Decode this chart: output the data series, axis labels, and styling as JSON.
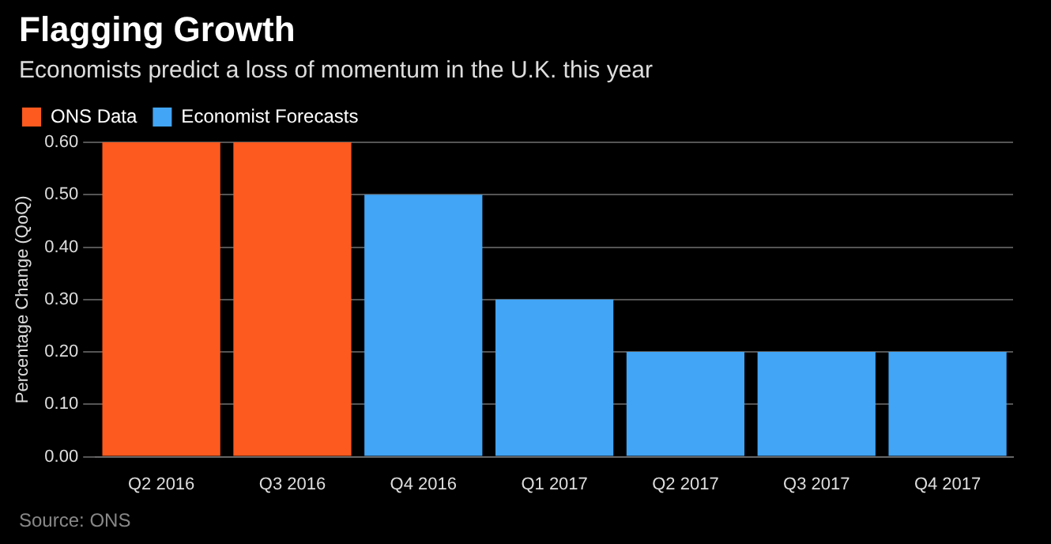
{
  "chart_data": {
    "type": "bar",
    "title": "Flagging Growth",
    "subtitle": "Economists predict a loss of momentum in the U.K. this year",
    "ylabel": "Percentage Change (QoQ)",
    "categories": [
      "Q2 2016",
      "Q3 2016",
      "Q4 2016",
      "Q1 2017",
      "Q2 2017",
      "Q3 2017",
      "Q4 2017"
    ],
    "series": [
      {
        "name": "ONS Data",
        "color": "#fc5a1e",
        "values": [
          0.6,
          0.6,
          null,
          null,
          null,
          null,
          null
        ]
      },
      {
        "name": "Economist Forecasts",
        "color": "#42a5f5",
        "values": [
          null,
          null,
          0.5,
          0.3,
          0.2,
          0.2,
          0.2
        ]
      }
    ],
    "ylim": [
      0,
      0.6
    ],
    "yticks": [
      {
        "value": 0,
        "label": "0.00"
      },
      {
        "value": 0.1,
        "label": "0.10"
      },
      {
        "value": 0.2,
        "label": "0.20"
      },
      {
        "value": 0.3,
        "label": "0.30"
      },
      {
        "value": 0.4,
        "label": "0.40"
      },
      {
        "value": 0.5,
        "label": "0.50"
      },
      {
        "value": 0.6,
        "label": "0.60"
      }
    ],
    "grid": "y",
    "legend": "top left",
    "annotations": [
      "Source: ONS"
    ]
  }
}
